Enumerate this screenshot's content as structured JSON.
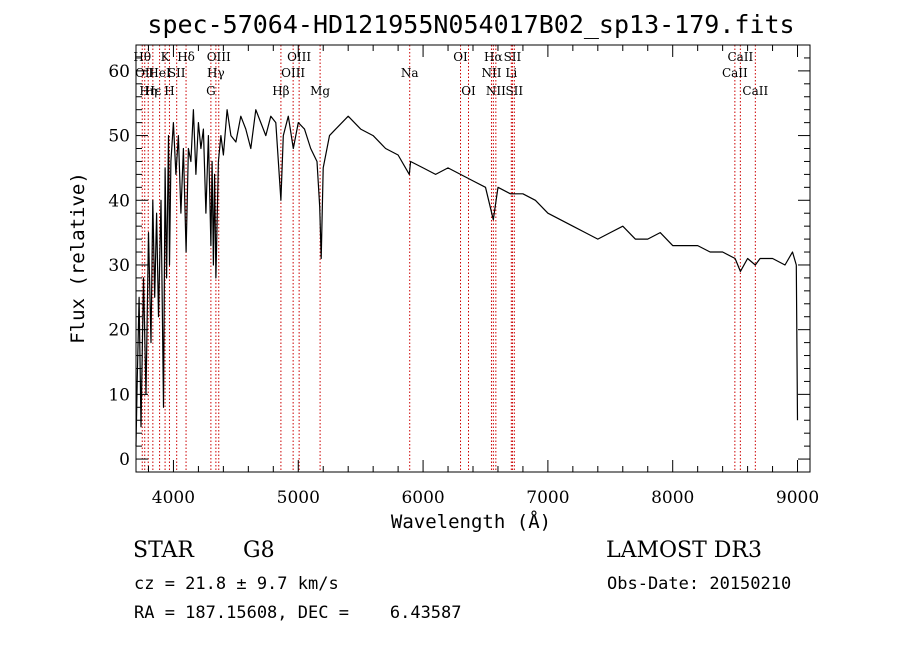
{
  "chart_data": {
    "type": "line",
    "title": "spec-57064-HD121955N054017B02_sp13-179.fits",
    "xlabel": "Wavelength (Å)",
    "ylabel": "Flux (relative)",
    "xlim": [
      3700,
      9100
    ],
    "ylim": [
      -2,
      64
    ],
    "x_ticks": [
      4000,
      5000,
      6000,
      7000,
      8000,
      9000
    ],
    "y_ticks": [
      0,
      10,
      20,
      30,
      40,
      50,
      60
    ],
    "grid": false,
    "line_color": "#000000",
    "marker_color": "#cc0000",
    "spectrum": {
      "x": [
        3700,
        3710,
        3725,
        3740,
        3760,
        3780,
        3800,
        3820,
        3835,
        3850,
        3865,
        3880,
        3900,
        3920,
        3933,
        3945,
        3960,
        3968,
        3980,
        4000,
        4020,
        4040,
        4060,
        4080,
        4101,
        4120,
        4140,
        4160,
        4180,
        4200,
        4220,
        4240,
        4260,
        4280,
        4300,
        4310,
        4320,
        4330,
        4340,
        4360,
        4380,
        4400,
        4430,
        4460,
        4500,
        4540,
        4580,
        4620,
        4660,
        4700,
        4740,
        4780,
        4820,
        4861,
        4880,
        4920,
        4960,
        5000,
        5050,
        5100,
        5150,
        5172,
        5184,
        5200,
        5250,
        5300,
        5400,
        5500,
        5600,
        5700,
        5800,
        5890,
        5900,
        6000,
        6100,
        6200,
        6300,
        6400,
        6500,
        6563,
        6600,
        6700,
        6800,
        6900,
        7000,
        7100,
        7200,
        7300,
        7400,
        7500,
        7600,
        7700,
        7800,
        7900,
        8000,
        8100,
        8200,
        8300,
        8400,
        8500,
        8542,
        8600,
        8662,
        8700,
        8800,
        8900,
        8960,
        8990,
        9000
      ],
      "y": [
        2,
        12,
        25,
        5,
        28,
        10,
        35,
        18,
        40,
        25,
        38,
        22,
        40,
        8,
        45,
        28,
        50,
        30,
        46,
        52,
        44,
        50,
        38,
        48,
        32,
        48,
        46,
        54,
        44,
        52,
        48,
        51,
        38,
        50,
        33,
        46,
        30,
        44,
        28,
        46,
        50,
        47,
        54,
        50,
        49,
        53,
        51,
        48,
        54,
        52,
        50,
        53,
        52,
        40,
        50,
        53,
        48,
        52,
        51,
        48,
        46,
        39,
        31,
        45,
        50,
        51,
        53,
        51,
        50,
        48,
        47,
        44,
        46,
        45,
        44,
        45,
        44,
        43,
        42,
        37,
        42,
        41,
        41,
        40,
        38,
        37,
        36,
        35,
        34,
        35,
        36,
        34,
        34,
        35,
        33,
        33,
        33,
        32,
        32,
        31,
        29,
        31,
        30,
        31,
        31,
        30,
        32,
        30,
        6
      ]
    },
    "lines": [
      {
        "wl": 3750,
        "label": "Hθ",
        "row": 1
      },
      {
        "wl": 3770,
        "label": "OII",
        "row": 2
      },
      {
        "wl": 3798,
        "label": "Hη",
        "row": 3
      },
      {
        "wl": 3835,
        "label": "Hε",
        "row": 3
      },
      {
        "wl": 3889,
        "label": "HeI",
        "row": 2
      },
      {
        "wl": 3933,
        "label": "K",
        "row": 1
      },
      {
        "wl": 3968,
        "label": "H",
        "row": 3
      },
      {
        "wl": 4026,
        "label": "SII",
        "row": 2
      },
      {
        "wl": 4101,
        "label": "Hδ",
        "row": 1
      },
      {
        "wl": 4300,
        "label": "G",
        "row": 3
      },
      {
        "wl": 4340,
        "label": "Hγ",
        "row": 2
      },
      {
        "wl": 4363,
        "label": "OIII",
        "row": 1
      },
      {
        "wl": 4861,
        "label": "Hβ",
        "row": 3
      },
      {
        "wl": 4959,
        "label": "OIII",
        "row": 2
      },
      {
        "wl": 5007,
        "label": "OIII",
        "row": 1
      },
      {
        "wl": 5175,
        "label": "Mg",
        "row": 3
      },
      {
        "wl": 5893,
        "label": "Na",
        "row": 2
      },
      {
        "wl": 6300,
        "label": "OI",
        "row": 1
      },
      {
        "wl": 6364,
        "label": "OI",
        "row": 3
      },
      {
        "wl": 6548,
        "label": "NII",
        "row": 2
      },
      {
        "wl": 6563,
        "label": "Hα",
        "row": 1
      },
      {
        "wl": 6583,
        "label": "NII",
        "row": 3
      },
      {
        "wl": 6707,
        "label": "Li",
        "row": 2
      },
      {
        "wl": 6716,
        "label": "SII",
        "row": 1
      },
      {
        "wl": 6731,
        "label": "SII",
        "row": 3
      },
      {
        "wl": 8498,
        "label": "CaII",
        "row": 2
      },
      {
        "wl": 8542,
        "label": "CaII",
        "row": 1
      },
      {
        "wl": 8662,
        "label": "CaII",
        "row": 3
      }
    ]
  },
  "info": {
    "object_class": "STAR",
    "subclass": "G8",
    "survey": "LAMOST DR3",
    "cz": "cz = 21.8 ± 9.7 km/s",
    "obs_date": "Obs-Date: 20150210",
    "coords": "RA = 187.15608, DEC =    6.43587"
  }
}
